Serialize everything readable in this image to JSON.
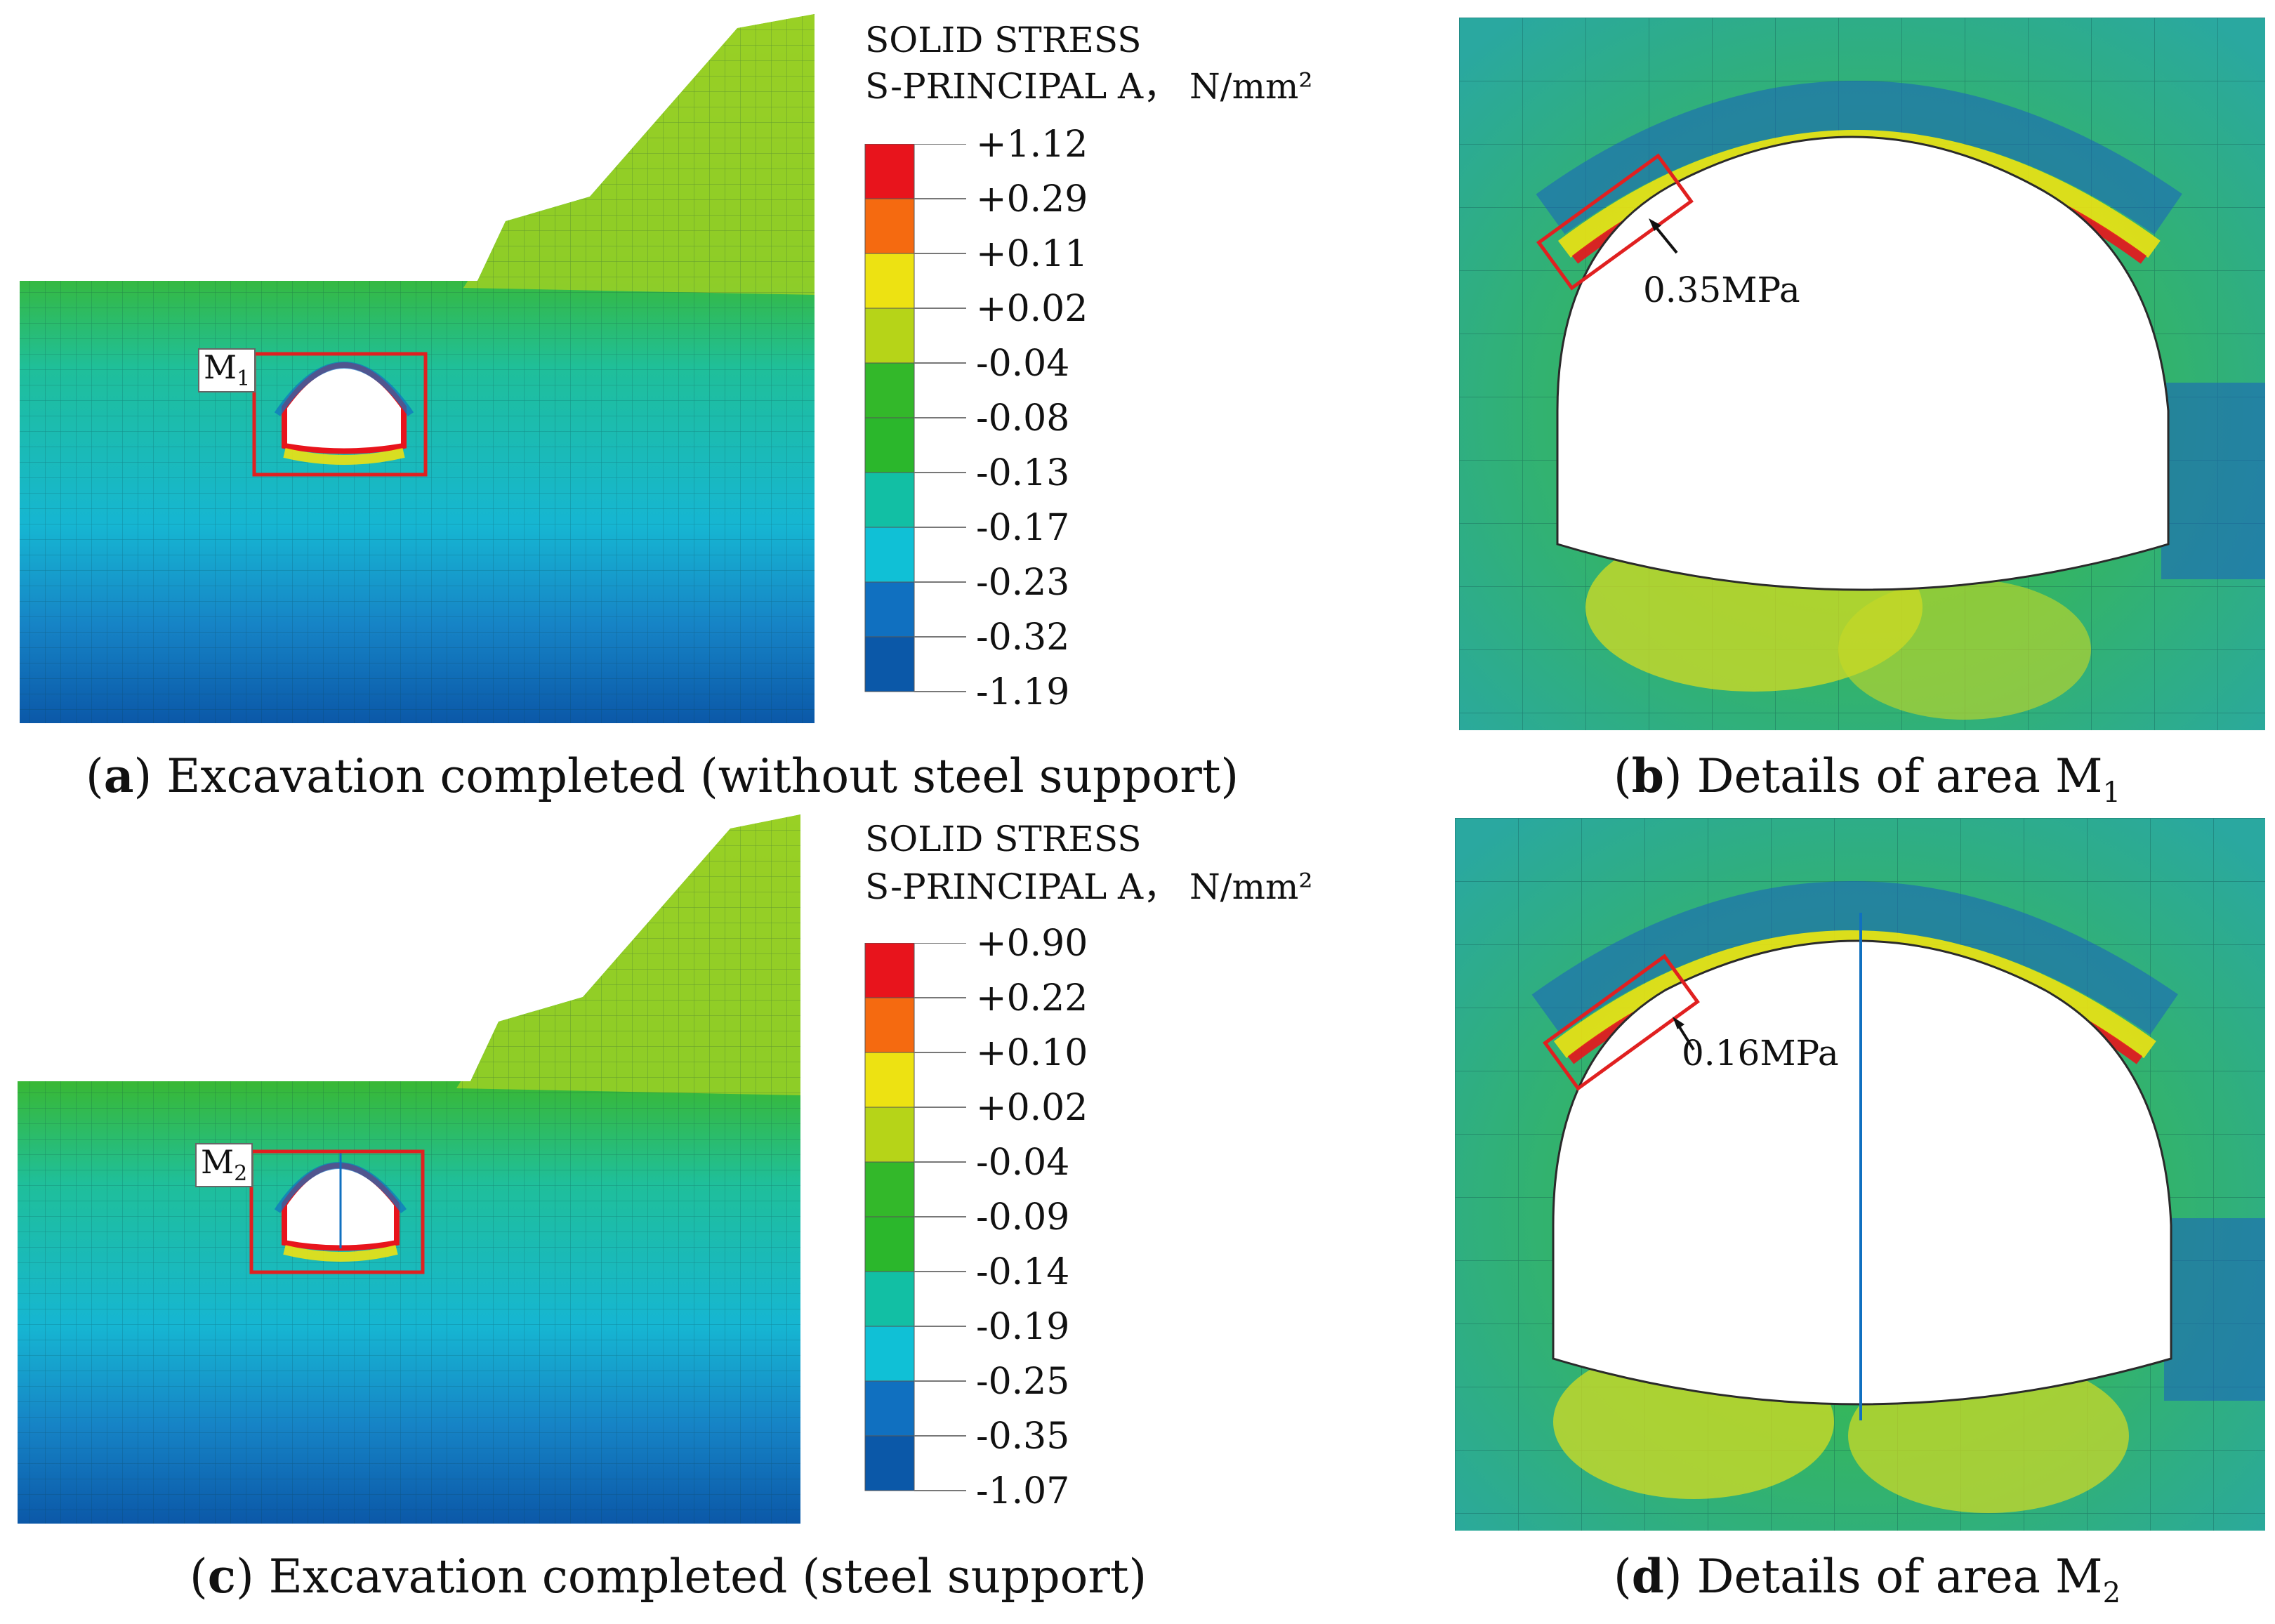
{
  "panels": [
    {
      "id": "a",
      "caption_letter": "a",
      "caption_text": "Excavation completed (without steel support)",
      "region_label": "M",
      "region_sub": "1",
      "legend": {
        "title1": "SOLID STRESS",
        "title2": "S-PRINCIPAL A， N/mm²",
        "ticks": [
          "+1.12",
          "+0.29",
          "+0.11",
          "+0.02",
          "-0.04",
          "-0.08",
          "-0.13",
          "-0.17",
          "-0.23",
          "-0.32",
          "-1.19"
        ]
      }
    },
    {
      "id": "b",
      "caption_letter": "b",
      "caption_text": "Details of area M",
      "caption_sub": "1",
      "annotation": "0.35MPa"
    },
    {
      "id": "c",
      "caption_letter": "c",
      "caption_text": "Excavation completed (steel support)",
      "region_label": "M",
      "region_sub": "2",
      "legend": {
        "title1": "SOLID STRESS",
        "title2": "S-PRINCIPAL A， N/mm²",
        "ticks": [
          "+0.90",
          "+0.22",
          "+0.10",
          "+0.02",
          "-0.04",
          "-0.09",
          "-0.14",
          "-0.19",
          "-0.25",
          "-0.35",
          "-1.07"
        ]
      }
    },
    {
      "id": "d",
      "caption_letter": "d",
      "caption_text": "Details of area M",
      "caption_sub": "2",
      "annotation": "0.16MPa"
    }
  ],
  "colors": {
    "scale": [
      "#e8141c",
      "#f56a10",
      "#ede212",
      "#b6d418",
      "#33b82a",
      "#2bb72c",
      "#12bfa4",
      "#10c0d6",
      "#1070c0",
      "#0b58a8"
    ],
    "highlight": "#e02020"
  }
}
